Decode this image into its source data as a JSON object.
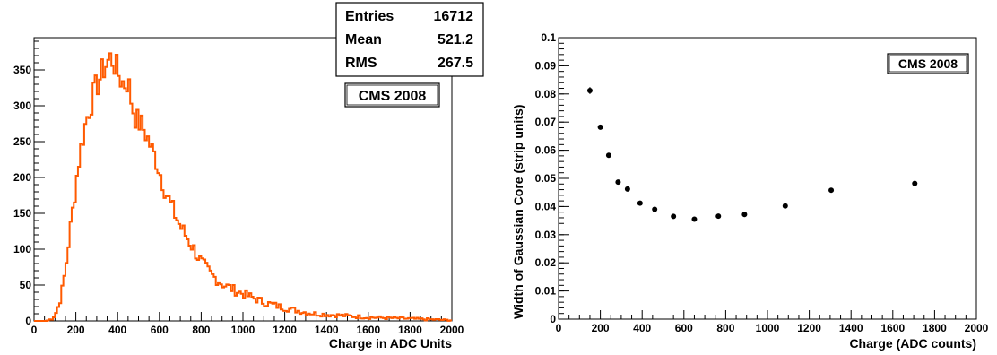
{
  "chart_data": [
    {
      "type": "histogram",
      "xlabel": "Charge in ADC Units",
      "ylabel": "",
      "xlim": [
        0,
        2000
      ],
      "ylim": [
        0,
        395
      ],
      "xticks": [
        0,
        200,
        400,
        600,
        800,
        1000,
        1200,
        1400,
        1600,
        1800,
        2000
      ],
      "yticks": [
        0,
        50,
        100,
        150,
        200,
        250,
        300,
        350
      ],
      "grid": false,
      "line_color": "#ff5a00",
      "bin_width": 10,
      "label": "CMS 2008",
      "stats": [
        {
          "name": "Entries",
          "value": "16712"
        },
        {
          "name": "Mean",
          "value": "521.2"
        },
        {
          "name": "RMS",
          "value": "267.5"
        }
      ],
      "bin_curve": [
        [
          0,
          0
        ],
        [
          60,
          0
        ],
        [
          90,
          4
        ],
        [
          110,
          14
        ],
        [
          130,
          35
        ],
        [
          150,
          70
        ],
        [
          170,
          120
        ],
        [
          190,
          165
        ],
        [
          210,
          215
        ],
        [
          230,
          250
        ],
        [
          250,
          280
        ],
        [
          270,
          300
        ],
        [
          290,
          320
        ],
        [
          310,
          335
        ],
        [
          330,
          350
        ],
        [
          350,
          360
        ],
        [
          370,
          368
        ],
        [
          390,
          355
        ],
        [
          410,
          340
        ],
        [
          430,
          330
        ],
        [
          450,
          335
        ],
        [
          470,
          300
        ],
        [
          490,
          280
        ],
        [
          510,
          275
        ],
        [
          530,
          265
        ],
        [
          550,
          250
        ],
        [
          570,
          235
        ],
        [
          590,
          220
        ],
        [
          610,
          200
        ],
        [
          630,
          180
        ],
        [
          650,
          165
        ],
        [
          700,
          132
        ],
        [
          750,
          108
        ],
        [
          800,
          82
        ],
        [
          850,
          64
        ],
        [
          900,
          52
        ],
        [
          950,
          44
        ],
        [
          1000,
          38
        ],
        [
          1050,
          32
        ],
        [
          1100,
          26
        ],
        [
          1150,
          22
        ],
        [
          1200,
          18
        ],
        [
          1250,
          15
        ],
        [
          1300,
          12
        ],
        [
          1350,
          10
        ],
        [
          1400,
          9
        ],
        [
          1450,
          8
        ],
        [
          1500,
          7
        ],
        [
          1600,
          5
        ],
        [
          1700,
          4
        ],
        [
          1800,
          3
        ],
        [
          1900,
          2
        ],
        [
          2000,
          1
        ]
      ]
    },
    {
      "type": "scatter",
      "xlabel": "Charge (ADC counts)",
      "ylabel": "Width of Gaussian Core (strip units)",
      "xlim": [
        0,
        2000
      ],
      "ylim": [
        0,
        0.1
      ],
      "xticks": [
        0,
        200,
        400,
        600,
        800,
        1000,
        1200,
        1400,
        1600,
        1800,
        2000
      ],
      "yticks": [
        0,
        0.01,
        0.02,
        0.03,
        0.04,
        0.05,
        0.06,
        0.07,
        0.08,
        0.09,
        0.1
      ],
      "ytick_labels": [
        "0",
        "0.01",
        "0.02",
        "0.03",
        "0.04",
        "0.05",
        "0.06",
        "0.07",
        "0.08",
        "0.09",
        "0.1"
      ],
      "grid": false,
      "marker_color": "#000000",
      "label": "CMS 2008",
      "points": [
        {
          "x": 150,
          "y": 0.0812,
          "err": 0.0012
        },
        {
          "x": 200,
          "y": 0.0682
        },
        {
          "x": 240,
          "y": 0.0582
        },
        {
          "x": 285,
          "y": 0.0487
        },
        {
          "x": 330,
          "y": 0.0462
        },
        {
          "x": 390,
          "y": 0.0412
        },
        {
          "x": 460,
          "y": 0.039
        },
        {
          "x": 550,
          "y": 0.0365
        },
        {
          "x": 650,
          "y": 0.0355
        },
        {
          "x": 765,
          "y": 0.0366
        },
        {
          "x": 890,
          "y": 0.0372
        },
        {
          "x": 1085,
          "y": 0.0402
        },
        {
          "x": 1305,
          "y": 0.0458
        },
        {
          "x": 1705,
          "y": 0.0482
        }
      ]
    }
  ]
}
